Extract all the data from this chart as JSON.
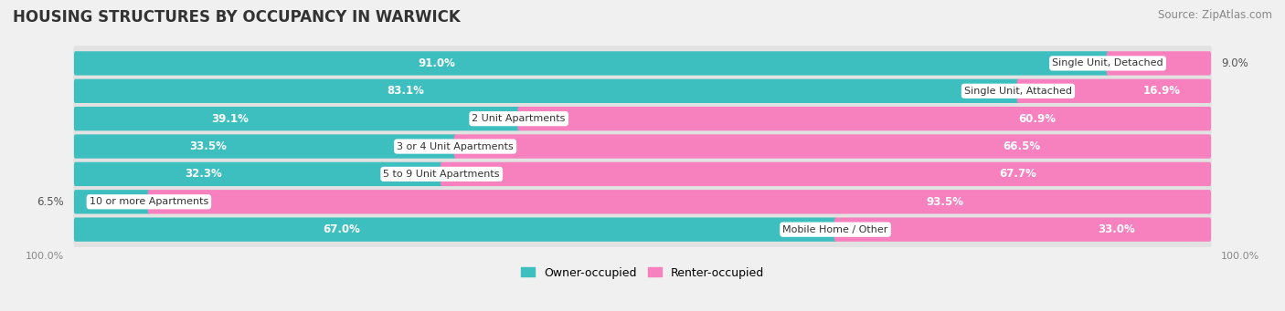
{
  "title": "HOUSING STRUCTURES BY OCCUPANCY IN WARWICK",
  "source": "Source: ZipAtlas.com",
  "categories": [
    "Single Unit, Detached",
    "Single Unit, Attached",
    "2 Unit Apartments",
    "3 or 4 Unit Apartments",
    "5 to 9 Unit Apartments",
    "10 or more Apartments",
    "Mobile Home / Other"
  ],
  "owner_pct": [
    91.0,
    83.1,
    39.1,
    33.5,
    32.3,
    6.5,
    67.0
  ],
  "renter_pct": [
    9.0,
    16.9,
    60.9,
    66.5,
    67.7,
    93.5,
    33.0
  ],
  "owner_color": "#3dbfbf",
  "renter_color": "#f780be",
  "owner_color_light": "#a8dede",
  "background_color": "#f0f0f0",
  "row_bg_color": "#e2e2e2",
  "title_fontsize": 12,
  "source_fontsize": 8.5,
  "label_fontsize": 8.5,
  "category_fontsize": 8,
  "legend_fontsize": 9,
  "axis_label_fontsize": 8
}
